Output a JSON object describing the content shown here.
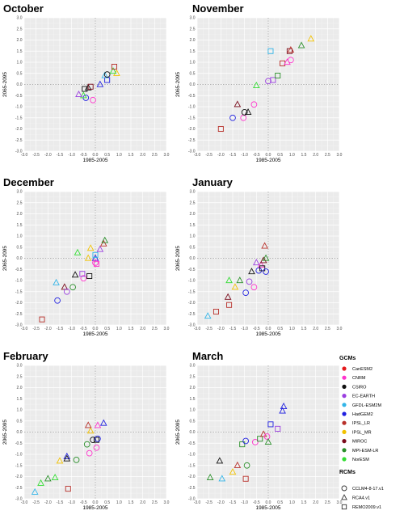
{
  "colors": {
    "CanESM2": "#e41a1c",
    "CNRM": "#ff33cc",
    "CSIRO": "#111111",
    "EC-EARTH": "#9b3fe0",
    "GFDL-ESM2M": "#33b5e8",
    "HadGEM2": "#2020e0",
    "IPSL_LR": "#b8302a",
    "IPSL_MR": "#f2c200",
    "MIROC": "#7a0b1b",
    "MPI-ESM-LR": "#2a8f2a",
    "NorESM": "#33dd33"
  },
  "legend": {
    "gcm_title": "GCMs",
    "gcms": [
      "CanESM2",
      "CNRM",
      "CSIRO",
      "EC-EARTH",
      "GFDL-ESM2M",
      "HadGEM2",
      "IPSL_LR",
      "IPSL_MR",
      "MIROC",
      "MPI-ESM-LR",
      "NorESM"
    ],
    "rcm_title": "RCMs",
    "rcms": [
      {
        "name": "CCLM4-8-17.v1",
        "shape": "circle"
      },
      {
        "name": "RCA4.v1",
        "shape": "triangle"
      },
      {
        "name": "REMO2009.v1",
        "shape": "square"
      }
    ]
  },
  "chart_data": [
    {
      "type": "scatter",
      "title": "October",
      "xlabel": "1985-2005",
      "ylabel": "2065-2095",
      "xlim": [
        -3.0,
        3.0
      ],
      "ylim": [
        -3.0,
        3.0
      ],
      "ticks": [
        "-3.0",
        "-2.5",
        "-2.0",
        "-1.5",
        "-1.0",
        "-0.5",
        "0.0",
        "0.5",
        "1.0",
        "1.5",
        "2.0",
        "2.5",
        "3.0"
      ],
      "reference_lines": {
        "x": 0,
        "y": 0
      },
      "points": [
        {
          "x": -0.4,
          "y": -0.6,
          "gcm": "HadGEM2",
          "rcm": "CCLM4-8-17.v1"
        },
        {
          "x": -0.5,
          "y": -0.5,
          "gcm": "NorESM",
          "rcm": "RCA4.v1"
        },
        {
          "x": -0.7,
          "y": -0.45,
          "gcm": "EC-EARTH",
          "rcm": "RCA4.v1"
        },
        {
          "x": -0.1,
          "y": -0.7,
          "gcm": "CNRM",
          "rcm": "CCLM4-8-17.v1"
        },
        {
          "x": -0.3,
          "y": -0.15,
          "gcm": "CSIRO",
          "rcm": "RCA4.v1"
        },
        {
          "x": -0.45,
          "y": -0.2,
          "gcm": "CSIRO",
          "rcm": "REMO2009.v1"
        },
        {
          "x": -0.2,
          "y": -0.1,
          "gcm": "MIROC",
          "rcm": "REMO2009.v1"
        },
        {
          "x": 0.2,
          "y": 0.0,
          "gcm": "HadGEM2",
          "rcm": "RCA4.v1"
        },
        {
          "x": 0.5,
          "y": 0.2,
          "gcm": "HadGEM2",
          "rcm": "REMO2009.v1"
        },
        {
          "x": 0.4,
          "y": 0.4,
          "gcm": "GFDL-ESM2M",
          "rcm": "RCA4.v1"
        },
        {
          "x": 0.5,
          "y": 0.45,
          "gcm": "CSIRO",
          "rcm": "CCLM4-8-17.v1"
        },
        {
          "x": 0.9,
          "y": 0.5,
          "gcm": "IPSL_MR",
          "rcm": "RCA4.v1"
        },
        {
          "x": 0.75,
          "y": 0.6,
          "gcm": "NorESM",
          "rcm": "RCA4.v1"
        },
        {
          "x": 0.8,
          "y": 0.8,
          "gcm": "IPSL_LR",
          "rcm": "REMO2009.v1"
        }
      ]
    },
    {
      "type": "scatter",
      "title": "November",
      "xlabel": "1985-2005",
      "ylabel": "2065-2095",
      "xlim": [
        -3.0,
        3.0
      ],
      "ylim": [
        -3.0,
        3.0
      ],
      "ticks": [
        "-3.0",
        "-2.5",
        "-2.0",
        "-1.5",
        "-1.0",
        "-0.5",
        "0.0",
        "0.5",
        "1.0",
        "1.5",
        "2.0",
        "2.5",
        "3.0"
      ],
      "reference_lines": {
        "x": 0,
        "y": 0
      },
      "points": [
        {
          "x": -2.0,
          "y": -2.0,
          "gcm": "IPSL_LR",
          "rcm": "REMO2009.v1"
        },
        {
          "x": -1.5,
          "y": -1.5,
          "gcm": "HadGEM2",
          "rcm": "CCLM4-8-17.v1"
        },
        {
          "x": -1.05,
          "y": -1.5,
          "gcm": "CNRM",
          "rcm": "CCLM4-8-17.v1"
        },
        {
          "x": -1.3,
          "y": -0.9,
          "gcm": "MIROC",
          "rcm": "RCA4.v1"
        },
        {
          "x": -0.85,
          "y": -1.25,
          "gcm": "CSIRO",
          "rcm": "RCA4.v1"
        },
        {
          "x": -1.0,
          "y": -1.25,
          "gcm": "CSIRO",
          "rcm": "CCLM4-8-17.v1"
        },
        {
          "x": -0.6,
          "y": -0.9,
          "gcm": "CNRM",
          "rcm": "CCLM4-8-17.v1"
        },
        {
          "x": -0.5,
          "y": -0.05,
          "gcm": "NorESM",
          "rcm": "RCA4.v1"
        },
        {
          "x": 0.0,
          "y": 0.15,
          "gcm": "EC-EARTH",
          "rcm": "CCLM4-8-17.v1"
        },
        {
          "x": 0.2,
          "y": 0.2,
          "gcm": "EC-EARTH",
          "rcm": "REMO2009.v1"
        },
        {
          "x": 0.4,
          "y": 0.4,
          "gcm": "MPI-ESM-LR",
          "rcm": "REMO2009.v1"
        },
        {
          "x": 0.1,
          "y": 1.5,
          "gcm": "GFDL-ESM2M",
          "rcm": "REMO2009.v1"
        },
        {
          "x": 0.6,
          "y": 0.95,
          "gcm": "IPSL_LR",
          "rcm": "REMO2009.v1"
        },
        {
          "x": 0.8,
          "y": 1.0,
          "gcm": "CNRM",
          "rcm": "RCA4.v1"
        },
        {
          "x": 0.95,
          "y": 1.1,
          "gcm": "CNRM",
          "rcm": "CCLM4-8-17.v1"
        },
        {
          "x": 0.9,
          "y": 1.5,
          "gcm": "MIROC",
          "rcm": "REMO2009.v1"
        },
        {
          "x": 0.95,
          "y": 1.55,
          "gcm": "IPSL_LR",
          "rcm": "RCA4.v1"
        },
        {
          "x": 1.4,
          "y": 1.75,
          "gcm": "MPI-ESM-LR",
          "rcm": "RCA4.v1"
        },
        {
          "x": 1.8,
          "y": 2.05,
          "gcm": "IPSL_MR",
          "rcm": "RCA4.v1"
        }
      ]
    },
    {
      "type": "scatter",
      "title": "December",
      "xlabel": "1985-2005",
      "ylabel": "2065-2095",
      "xlim": [
        -3.0,
        3.0
      ],
      "ylim": [
        -3.0,
        3.0
      ],
      "ticks": [
        "-3.0",
        "-2.5",
        "-2.0",
        "-1.5",
        "-1.0",
        "-0.5",
        "0.0",
        "0.5",
        "1.0",
        "1.5",
        "2.0",
        "2.5",
        "3.0"
      ],
      "reference_lines": {
        "x": 0,
        "y": 0
      },
      "points": [
        {
          "x": -2.25,
          "y": -2.75,
          "gcm": "IPSL_LR",
          "rcm": "REMO2009.v1"
        },
        {
          "x": -1.6,
          "y": -1.9,
          "gcm": "HadGEM2",
          "rcm": "CCLM4-8-17.v1"
        },
        {
          "x": -1.65,
          "y": -1.1,
          "gcm": "GFDL-ESM2M",
          "rcm": "RCA4.v1"
        },
        {
          "x": -1.3,
          "y": -1.3,
          "gcm": "MIROC",
          "rcm": "RCA4.v1"
        },
        {
          "x": -1.2,
          "y": -1.5,
          "gcm": "EC-EARTH",
          "rcm": "CCLM4-8-17.v1"
        },
        {
          "x": -0.95,
          "y": -1.3,
          "gcm": "MPI-ESM-LR",
          "rcm": "CCLM4-8-17.v1"
        },
        {
          "x": -0.85,
          "y": -0.75,
          "gcm": "CSIRO",
          "rcm": "RCA4.v1"
        },
        {
          "x": -0.5,
          "y": -0.9,
          "gcm": "CNRM",
          "rcm": "CCLM4-8-17.v1"
        },
        {
          "x": -0.55,
          "y": -0.7,
          "gcm": "EC-EARTH",
          "rcm": "REMO2009.v1"
        },
        {
          "x": -0.75,
          "y": 0.25,
          "gcm": "NorESM",
          "rcm": "RCA4.v1"
        },
        {
          "x": -0.3,
          "y": 0.0,
          "gcm": "IPSL_MR",
          "rcm": "RCA4.v1"
        },
        {
          "x": -0.25,
          "y": -0.8,
          "gcm": "CSIRO",
          "rcm": "REMO2009.v1"
        },
        {
          "x": -0.2,
          "y": 0.45,
          "gcm": "IPSL_MR",
          "rcm": "RCA4.v1"
        },
        {
          "x": 0.0,
          "y": 0.0,
          "gcm": "HadGEM2",
          "rcm": "RCA4.v1"
        },
        {
          "x": 0.0,
          "y": -0.2,
          "gcm": "CNRM",
          "rcm": "CCLM4-8-17.v1"
        },
        {
          "x": 0.05,
          "y": -0.25,
          "gcm": "CNRM",
          "rcm": "REMO2009.v1"
        },
        {
          "x": 0.2,
          "y": 0.4,
          "gcm": "EC-EARTH",
          "rcm": "RCA4.v1"
        },
        {
          "x": 0.35,
          "y": 0.65,
          "gcm": "IPSL_LR",
          "rcm": "RCA4.v1"
        },
        {
          "x": 0.4,
          "y": 0.8,
          "gcm": "MPI-ESM-LR",
          "rcm": "RCA4.v1"
        },
        {
          "x": 0.0,
          "y": 0.15,
          "gcm": "GFDL-ESM2M",
          "rcm": "REMO2009.v1"
        }
      ]
    },
    {
      "type": "scatter",
      "title": "January",
      "xlabel": "1985-2005",
      "ylabel": "2065-2095",
      "xlim": [
        -3.0,
        3.0
      ],
      "ylim": [
        -3.0,
        3.0
      ],
      "ticks": [
        "-3.0",
        "-2.5",
        "-2.0",
        "-1.5",
        "-1.0",
        "-0.5",
        "0.0",
        "0.5",
        "1.0",
        "1.5",
        "2.0",
        "2.5",
        "3.0"
      ],
      "reference_lines": {
        "x": 0,
        "y": 0
      },
      "points": [
        {
          "x": -2.55,
          "y": -2.6,
          "gcm": "GFDL-ESM2M",
          "rcm": "RCA4.v1"
        },
        {
          "x": -2.2,
          "y": -2.4,
          "gcm": "IPSL_LR",
          "rcm": "REMO2009.v1"
        },
        {
          "x": -1.65,
          "y": -2.1,
          "gcm": "IPSL_LR",
          "rcm": "REMO2009.v1"
        },
        {
          "x": -1.7,
          "y": -1.75,
          "gcm": "MIROC",
          "rcm": "RCA4.v1"
        },
        {
          "x": -1.65,
          "y": -1.0,
          "gcm": "NorESM",
          "rcm": "RCA4.v1"
        },
        {
          "x": -1.4,
          "y": -1.3,
          "gcm": "IPSL_MR",
          "rcm": "RCA4.v1"
        },
        {
          "x": -1.2,
          "y": -1.0,
          "gcm": "MPI-ESM-LR",
          "rcm": "RCA4.v1"
        },
        {
          "x": -0.95,
          "y": -1.55,
          "gcm": "HadGEM2",
          "rcm": "CCLM4-8-17.v1"
        },
        {
          "x": -0.8,
          "y": -1.05,
          "gcm": "EC-EARTH",
          "rcm": "CCLM4-8-17.v1"
        },
        {
          "x": -0.6,
          "y": -1.3,
          "gcm": "CNRM",
          "rcm": "CCLM4-8-17.v1"
        },
        {
          "x": -0.7,
          "y": -0.6,
          "gcm": "CSIRO",
          "rcm": "RCA4.v1"
        },
        {
          "x": -0.5,
          "y": -0.2,
          "gcm": "EC-EARTH",
          "rcm": "RCA4.v1"
        },
        {
          "x": -0.4,
          "y": -0.55,
          "gcm": "HadGEM2",
          "rcm": "CCLM4-8-17.v1"
        },
        {
          "x": -0.3,
          "y": -0.3,
          "gcm": "CNRM",
          "rcm": "RCA4.v1"
        },
        {
          "x": -0.2,
          "y": -0.1,
          "gcm": "MIROC",
          "rcm": "RCA4.v1"
        },
        {
          "x": -0.25,
          "y": -0.45,
          "gcm": "CSIRO",
          "rcm": "REMO2009.v1"
        },
        {
          "x": -0.1,
          "y": 0.0,
          "gcm": "MPI-ESM-LR",
          "rcm": "RCA4.v1"
        },
        {
          "x": -0.1,
          "y": -0.6,
          "gcm": "HadGEM2",
          "rcm": "CCLM4-8-17.v1"
        },
        {
          "x": -0.15,
          "y": 0.55,
          "gcm": "IPSL_LR",
          "rcm": "RCA4.v1"
        }
      ]
    },
    {
      "type": "scatter",
      "title": "February",
      "xlabel": "1985-2005",
      "ylabel": "2065-2095",
      "xlim": [
        -3.0,
        3.0
      ],
      "ylim": [
        -3.0,
        3.0
      ],
      "ticks": [
        "-3.0",
        "-2.5",
        "-2.0",
        "-1.5",
        "-1.0",
        "-0.5",
        "0.0",
        "0.5",
        "1.0",
        "1.5",
        "2.0",
        "2.5",
        "3.0"
      ],
      "reference_lines": {
        "x": 0,
        "y": 0
      },
      "points": [
        {
          "x": -2.55,
          "y": -2.7,
          "gcm": "GFDL-ESM2M",
          "rcm": "RCA4.v1"
        },
        {
          "x": -2.3,
          "y": -2.3,
          "gcm": "NorESM",
          "rcm": "RCA4.v1"
        },
        {
          "x": -2.0,
          "y": -2.1,
          "gcm": "MPI-ESM-LR",
          "rcm": "RCA4.v1"
        },
        {
          "x": -1.7,
          "y": -2.05,
          "gcm": "NorESM",
          "rcm": "RCA4.v1"
        },
        {
          "x": -1.15,
          "y": -2.55,
          "gcm": "IPSL_LR",
          "rcm": "REMO2009.v1"
        },
        {
          "x": -1.5,
          "y": -1.3,
          "gcm": "IPSL_MR",
          "rcm": "RCA4.v1"
        },
        {
          "x": -1.2,
          "y": -1.1,
          "gcm": "HadGEM2",
          "rcm": "RCA4.v1"
        },
        {
          "x": -1.2,
          "y": -1.2,
          "gcm": "CSIRO",
          "rcm": "RCA4.v1"
        },
        {
          "x": -0.8,
          "y": -1.25,
          "gcm": "MPI-ESM-LR",
          "rcm": "CCLM4-8-17.v1"
        },
        {
          "x": -0.35,
          "y": -0.55,
          "gcm": "MPI-ESM-LR",
          "rcm": "CCLM4-8-17.v1"
        },
        {
          "x": -0.25,
          "y": -0.95,
          "gcm": "CNRM",
          "rcm": "CCLM4-8-17.v1"
        },
        {
          "x": -0.2,
          "y": 0.05,
          "gcm": "IPSL_MR",
          "rcm": "RCA4.v1"
        },
        {
          "x": -0.3,
          "y": 0.3,
          "gcm": "IPSL_LR",
          "rcm": "RCA4.v1"
        },
        {
          "x": -0.1,
          "y": -0.35,
          "gcm": "CSIRO",
          "rcm": "CCLM4-8-17.v1"
        },
        {
          "x": 0.05,
          "y": -0.35,
          "gcm": "CSIRO",
          "rcm": "REMO2009.v1"
        },
        {
          "x": 0.1,
          "y": 0.3,
          "gcm": "CNRM",
          "rcm": "RCA4.v1"
        },
        {
          "x": 0.05,
          "y": -0.7,
          "gcm": "CNRM",
          "rcm": "CCLM4-8-17.v1"
        },
        {
          "x": 0.35,
          "y": 0.4,
          "gcm": "HadGEM2",
          "rcm": "RCA4.v1"
        },
        {
          "x": 0.1,
          "y": -0.3,
          "gcm": "HadGEM2",
          "rcm": "CCLM4-8-17.v1"
        }
      ]
    },
    {
      "type": "scatter",
      "title": "March",
      "xlabel": "1985-2005",
      "ylabel": "2065-2095",
      "xlim": [
        -3.0,
        3.0
      ],
      "ylim": [
        -3.0,
        3.0
      ],
      "ticks": [
        "-3.0",
        "-2.5",
        "-2.0",
        "-1.5",
        "-1.0",
        "-0.5",
        "0.0",
        "0.5",
        "1.0",
        "1.5",
        "2.0",
        "2.5",
        "3.0"
      ],
      "reference_lines": {
        "x": 0,
        "y": 0
      },
      "points": [
        {
          "x": -2.45,
          "y": -2.05,
          "gcm": "MPI-ESM-LR",
          "rcm": "RCA4.v1"
        },
        {
          "x": -1.95,
          "y": -2.1,
          "gcm": "GFDL-ESM2M",
          "rcm": "RCA4.v1"
        },
        {
          "x": -2.05,
          "y": -1.3,
          "gcm": "CSIRO",
          "rcm": "RCA4.v1"
        },
        {
          "x": -1.5,
          "y": -1.8,
          "gcm": "IPSL_MR",
          "rcm": "RCA4.v1"
        },
        {
          "x": -1.3,
          "y": -1.5,
          "gcm": "IPSL_LR",
          "rcm": "RCA4.v1"
        },
        {
          "x": -0.95,
          "y": -2.1,
          "gcm": "IPSL_LR",
          "rcm": "REMO2009.v1"
        },
        {
          "x": -0.9,
          "y": -1.5,
          "gcm": "MPI-ESM-LR",
          "rcm": "CCLM4-8-17.v1"
        },
        {
          "x": -1.1,
          "y": -0.55,
          "gcm": "MPI-ESM-LR",
          "rcm": "REMO2009.v1"
        },
        {
          "x": -0.95,
          "y": -0.4,
          "gcm": "HadGEM2",
          "rcm": "CCLM4-8-17.v1"
        },
        {
          "x": -0.55,
          "y": -0.45,
          "gcm": "CNRM",
          "rcm": "CCLM4-8-17.v1"
        },
        {
          "x": -0.35,
          "y": -0.3,
          "gcm": "MPI-ESM-LR",
          "rcm": "REMO2009.v1"
        },
        {
          "x": -0.2,
          "y": -0.1,
          "gcm": "IPSL_LR",
          "rcm": "RCA4.v1"
        },
        {
          "x": -0.05,
          "y": -0.2,
          "gcm": "CNRM",
          "rcm": "CCLM4-8-17.v1"
        },
        {
          "x": 0.0,
          "y": -0.45,
          "gcm": "MPI-ESM-LR",
          "rcm": "RCA4.v1"
        },
        {
          "x": 0.1,
          "y": 0.35,
          "gcm": "HadGEM2",
          "rcm": "REMO2009.v1"
        },
        {
          "x": 0.4,
          "y": 0.15,
          "gcm": "EC-EARTH",
          "rcm": "REMO2009.v1"
        },
        {
          "x": 0.6,
          "y": 0.95,
          "gcm": "HadGEM2",
          "rcm": "RCA4.v1"
        },
        {
          "x": 0.65,
          "y": 1.15,
          "gcm": "HadGEM2",
          "rcm": "RCA4.v1"
        }
      ]
    }
  ]
}
